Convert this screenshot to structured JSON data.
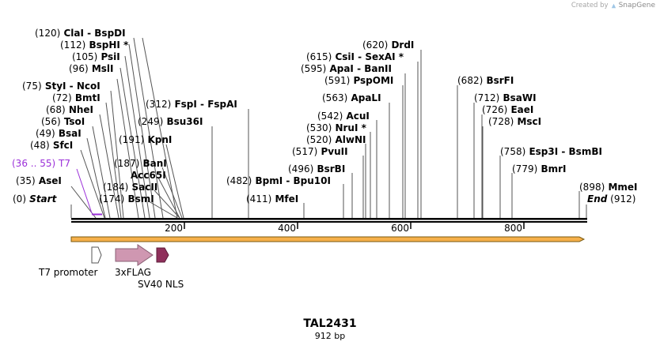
{
  "credit": {
    "prefix": "Created by",
    "brand": "SnapGene"
  },
  "sequence": {
    "name": "TAL2431",
    "length_label": "912 bp",
    "length_bp": 912
  },
  "ruler": {
    "ticks": [
      "200",
      "400",
      "600",
      "800"
    ]
  },
  "ends": {
    "start": {
      "pos": "(0)",
      "name": "Start",
      "bp": 0
    },
    "end": {
      "pos": "(912)",
      "name": "End",
      "bp": 912
    }
  },
  "enzymes": [
    {
      "pos": "(35)",
      "name": "AseI",
      "bp": 35
    },
    {
      "pos": "(48)",
      "name": "SfcI",
      "bp": 48
    },
    {
      "pos": "(49)",
      "name": "BsaI",
      "bp": 49
    },
    {
      "pos": "(56)",
      "name": "TsoI",
      "bp": 56
    },
    {
      "pos": "(68)",
      "name": "NheI",
      "bp": 68
    },
    {
      "pos": "(72)",
      "name": "BmtI",
      "bp": 72
    },
    {
      "pos": "(75)",
      "name": "StyI",
      "extra": "NcoI",
      "bp": 75
    },
    {
      "pos": "(96)",
      "name": "MslI",
      "bp": 96
    },
    {
      "pos": "(105)",
      "name": "PsiI",
      "bp": 105
    },
    {
      "pos": "(112)",
      "name": "BspHI",
      "star": "*",
      "bp": 112
    },
    {
      "pos": "(120)",
      "name": "ClaI",
      "extra": "BspDI",
      "bp": 120
    },
    {
      "pos": "(174)",
      "name": "BsmI",
      "bp": 174
    },
    {
      "pos": "(184)",
      "name": "SacII",
      "bp": 184
    },
    {
      "pos": "",
      "name": "Acc65I",
      "bp": 187
    },
    {
      "pos": "(187)",
      "name": "BanI",
      "bp": 187
    },
    {
      "pos": "(191)",
      "name": "KpnI",
      "bp": 191
    },
    {
      "pos": "(249)",
      "name": "Bsu36I",
      "bp": 249
    },
    {
      "pos": "(312)",
      "name": "FspI",
      "extra": "FspAI",
      "bp": 312
    },
    {
      "pos": "(411)",
      "name": "MfeI",
      "bp": 411
    },
    {
      "pos": "(482)",
      "name": "BpmI",
      "extra": "Bpu10I",
      "bp": 482
    },
    {
      "pos": "(496)",
      "name": "BsrBI",
      "bp": 496
    },
    {
      "pos": "(517)",
      "name": "PvuII",
      "bp": 517
    },
    {
      "pos": "(520)",
      "name": "AlwNI",
      "bp": 520
    },
    {
      "pos": "(530)",
      "name": "NruI",
      "star": "*",
      "bp": 530
    },
    {
      "pos": "(542)",
      "name": "AcuI",
      "bp": 542
    },
    {
      "pos": "(563)",
      "name": "ApaLI",
      "bp": 563
    },
    {
      "pos": "(591)",
      "name": "PspOMI",
      "bp": 591
    },
    {
      "pos": "(595)",
      "name": "ApaI",
      "extra": "BanII",
      "bp": 595
    },
    {
      "pos": "(615)",
      "name": "CsiI",
      "extra": "SexAI",
      "star": "*",
      "bp": 615
    },
    {
      "pos": "(620)",
      "name": "DrdI",
      "bp": 620
    },
    {
      "pos": "(682)",
      "name": "BsrFI",
      "bp": 682
    },
    {
      "pos": "(712)",
      "name": "BsaWI",
      "bp": 712
    },
    {
      "pos": "(726)",
      "name": "EaeI",
      "bp": 726
    },
    {
      "pos": "(728)",
      "name": "MscI",
      "bp": 728
    },
    {
      "pos": "(758)",
      "name": "Esp3I",
      "extra": "BsmBI",
      "bp": 758
    },
    {
      "pos": "(779)",
      "name": "BmrI",
      "bp": 779
    },
    {
      "pos": "(898)",
      "name": "MmeI",
      "bp": 898
    }
  ],
  "primer": {
    "pos": "(36 .. 55)",
    "name": "T7",
    "color": "#9b30d9"
  },
  "features": [
    {
      "name": "T7 promoter",
      "color": "#ffffff",
      "stroke": "#555555"
    },
    {
      "name": "3xFLAG",
      "color": "#cf97b1",
      "stroke": "#8a5f74"
    },
    {
      "name": "SV40 NLS",
      "color": "#8f2f5b",
      "stroke": "#5c1d3a"
    }
  ],
  "colors": {
    "backbone": "#000000",
    "orf_fill": "#f6b04a",
    "orf_stroke": "#7a5a10"
  }
}
